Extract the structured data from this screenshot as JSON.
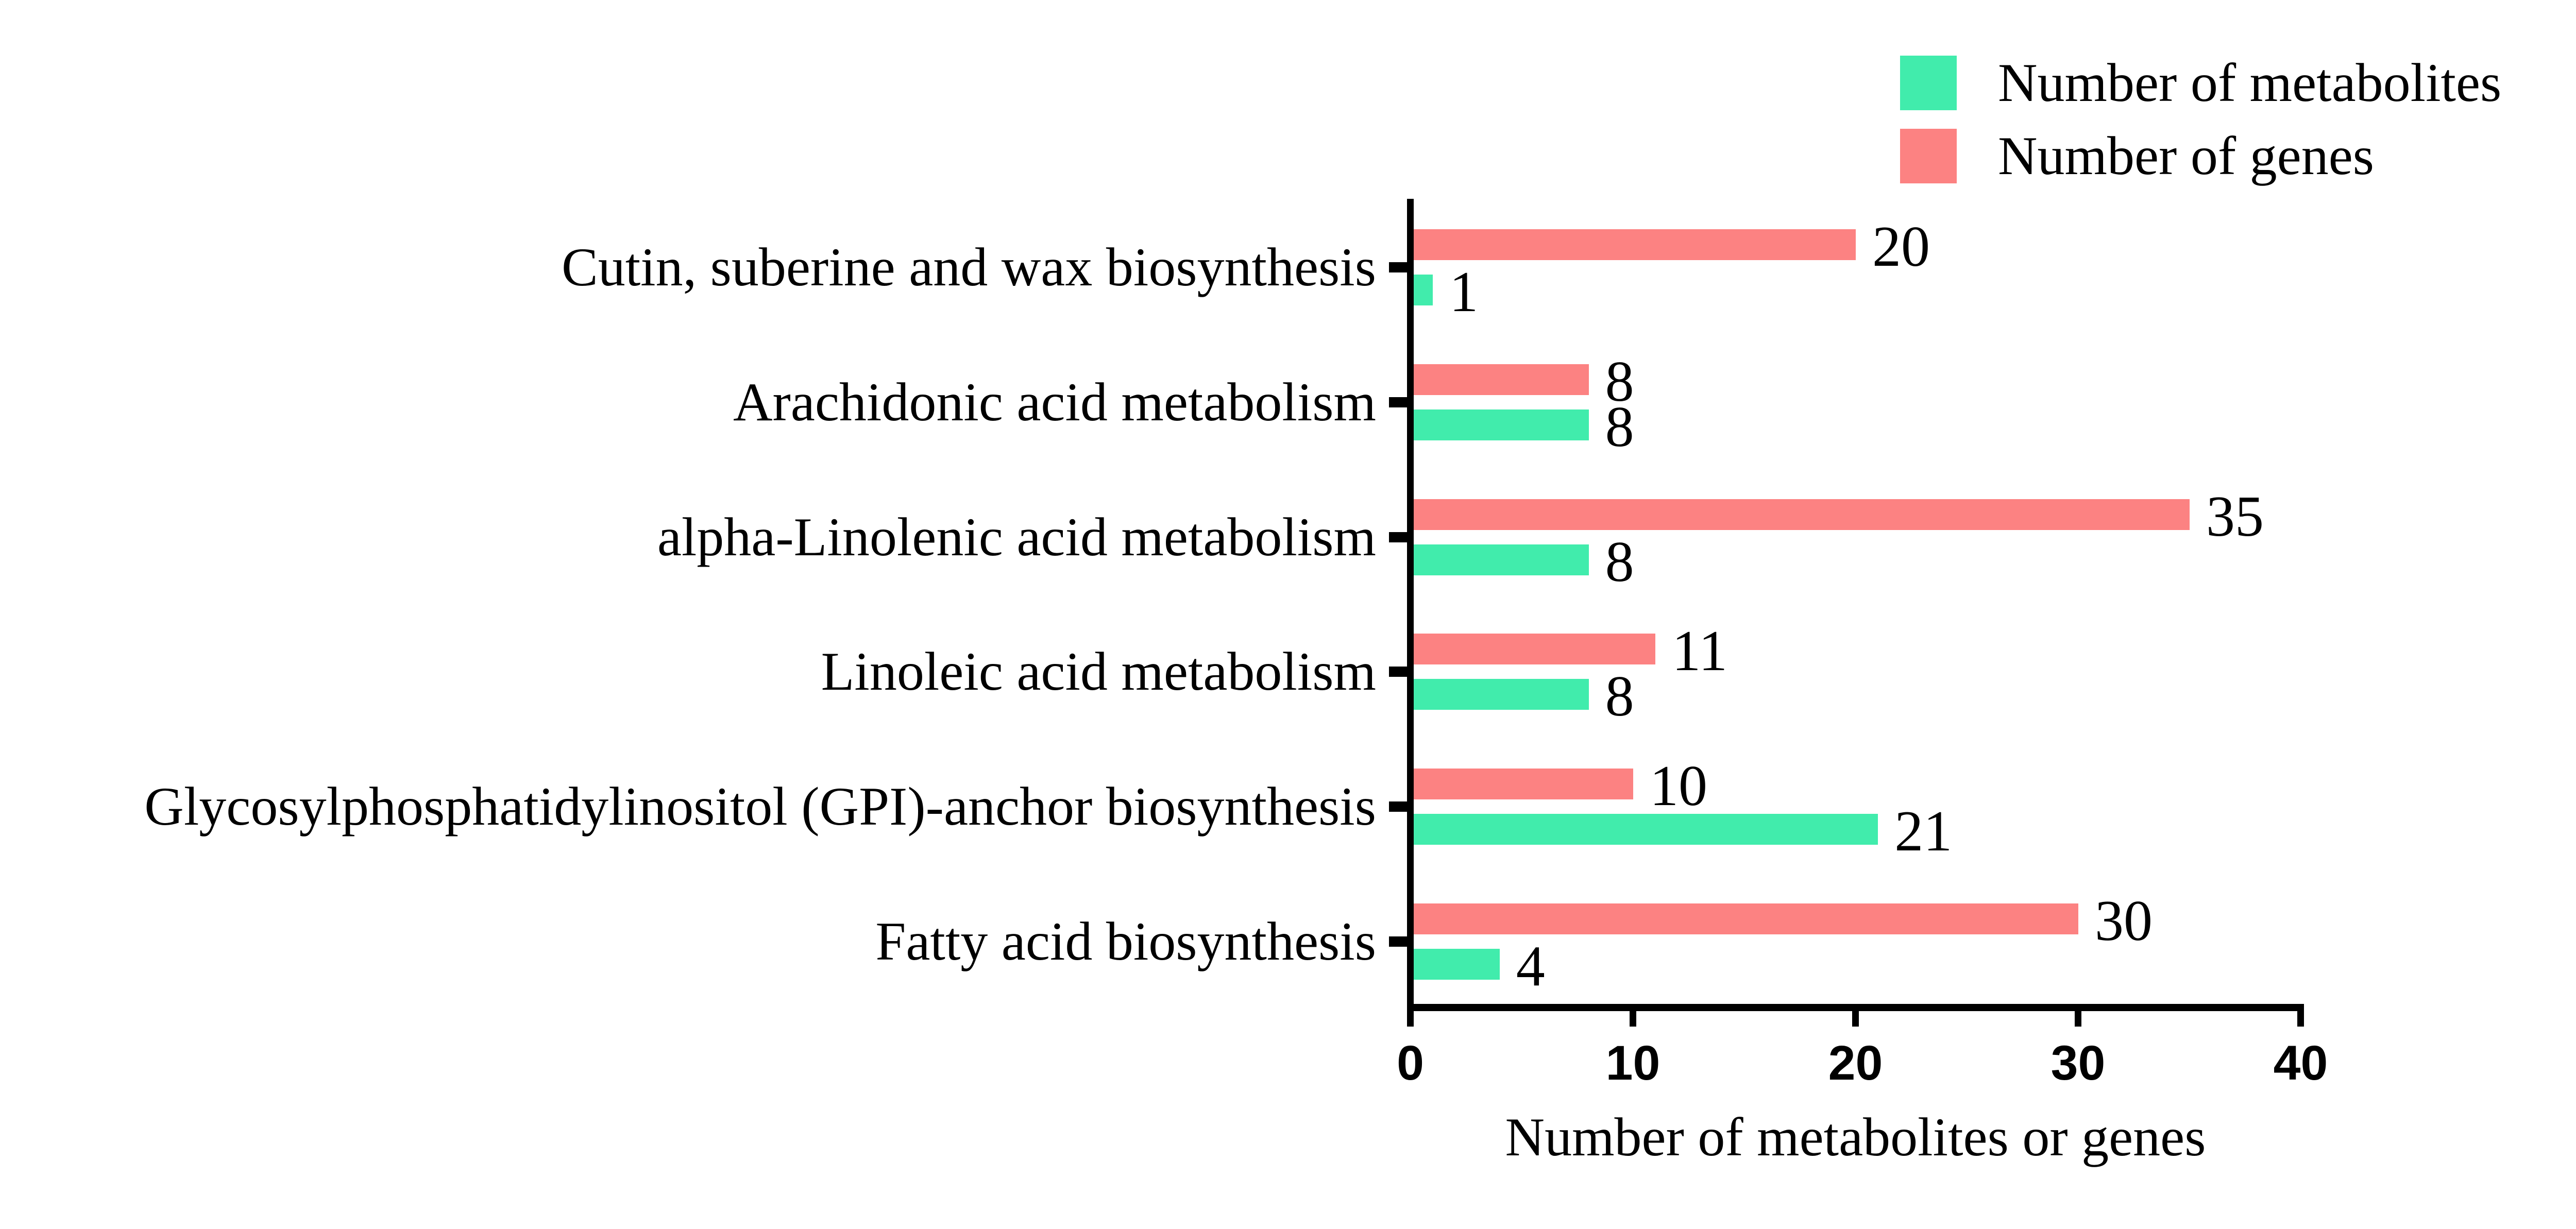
{
  "legend": {
    "items": [
      {
        "label": "Number of metabolites",
        "color": "#41ECAC"
      },
      {
        "label": "Number of genes",
        "color": "#FC8282"
      }
    ]
  },
  "chart_data": {
    "type": "bar",
    "orientation": "horizontal",
    "title": "",
    "xlabel": "Number of metabolites or genes",
    "ylabel": "",
    "xlim": [
      0,
      40
    ],
    "x_ticks": [
      0,
      10,
      20,
      30,
      40
    ],
    "grid": false,
    "legend_position": "top-right",
    "bar_value_labels": true,
    "bar_order_top_to_bottom": [
      "Number of genes",
      "Number of metabolites"
    ],
    "categories": [
      "Cutin, suberine and wax biosynthesis",
      "Arachidonic acid metabolism",
      "alpha-Linolenic acid metabolism",
      "Linoleic acid metabolism",
      "Glycosylphosphatidylinositol (GPI)-anchor biosynthesis",
      "Fatty acid biosynthesis"
    ],
    "series": [
      {
        "name": "Number of genes",
        "color": "#FC8282",
        "values": [
          20,
          8,
          35,
          11,
          10,
          30
        ]
      },
      {
        "name": "Number of metabolites",
        "color": "#41ECAC",
        "values": [
          1,
          8,
          8,
          8,
          21,
          4
        ]
      }
    ]
  }
}
